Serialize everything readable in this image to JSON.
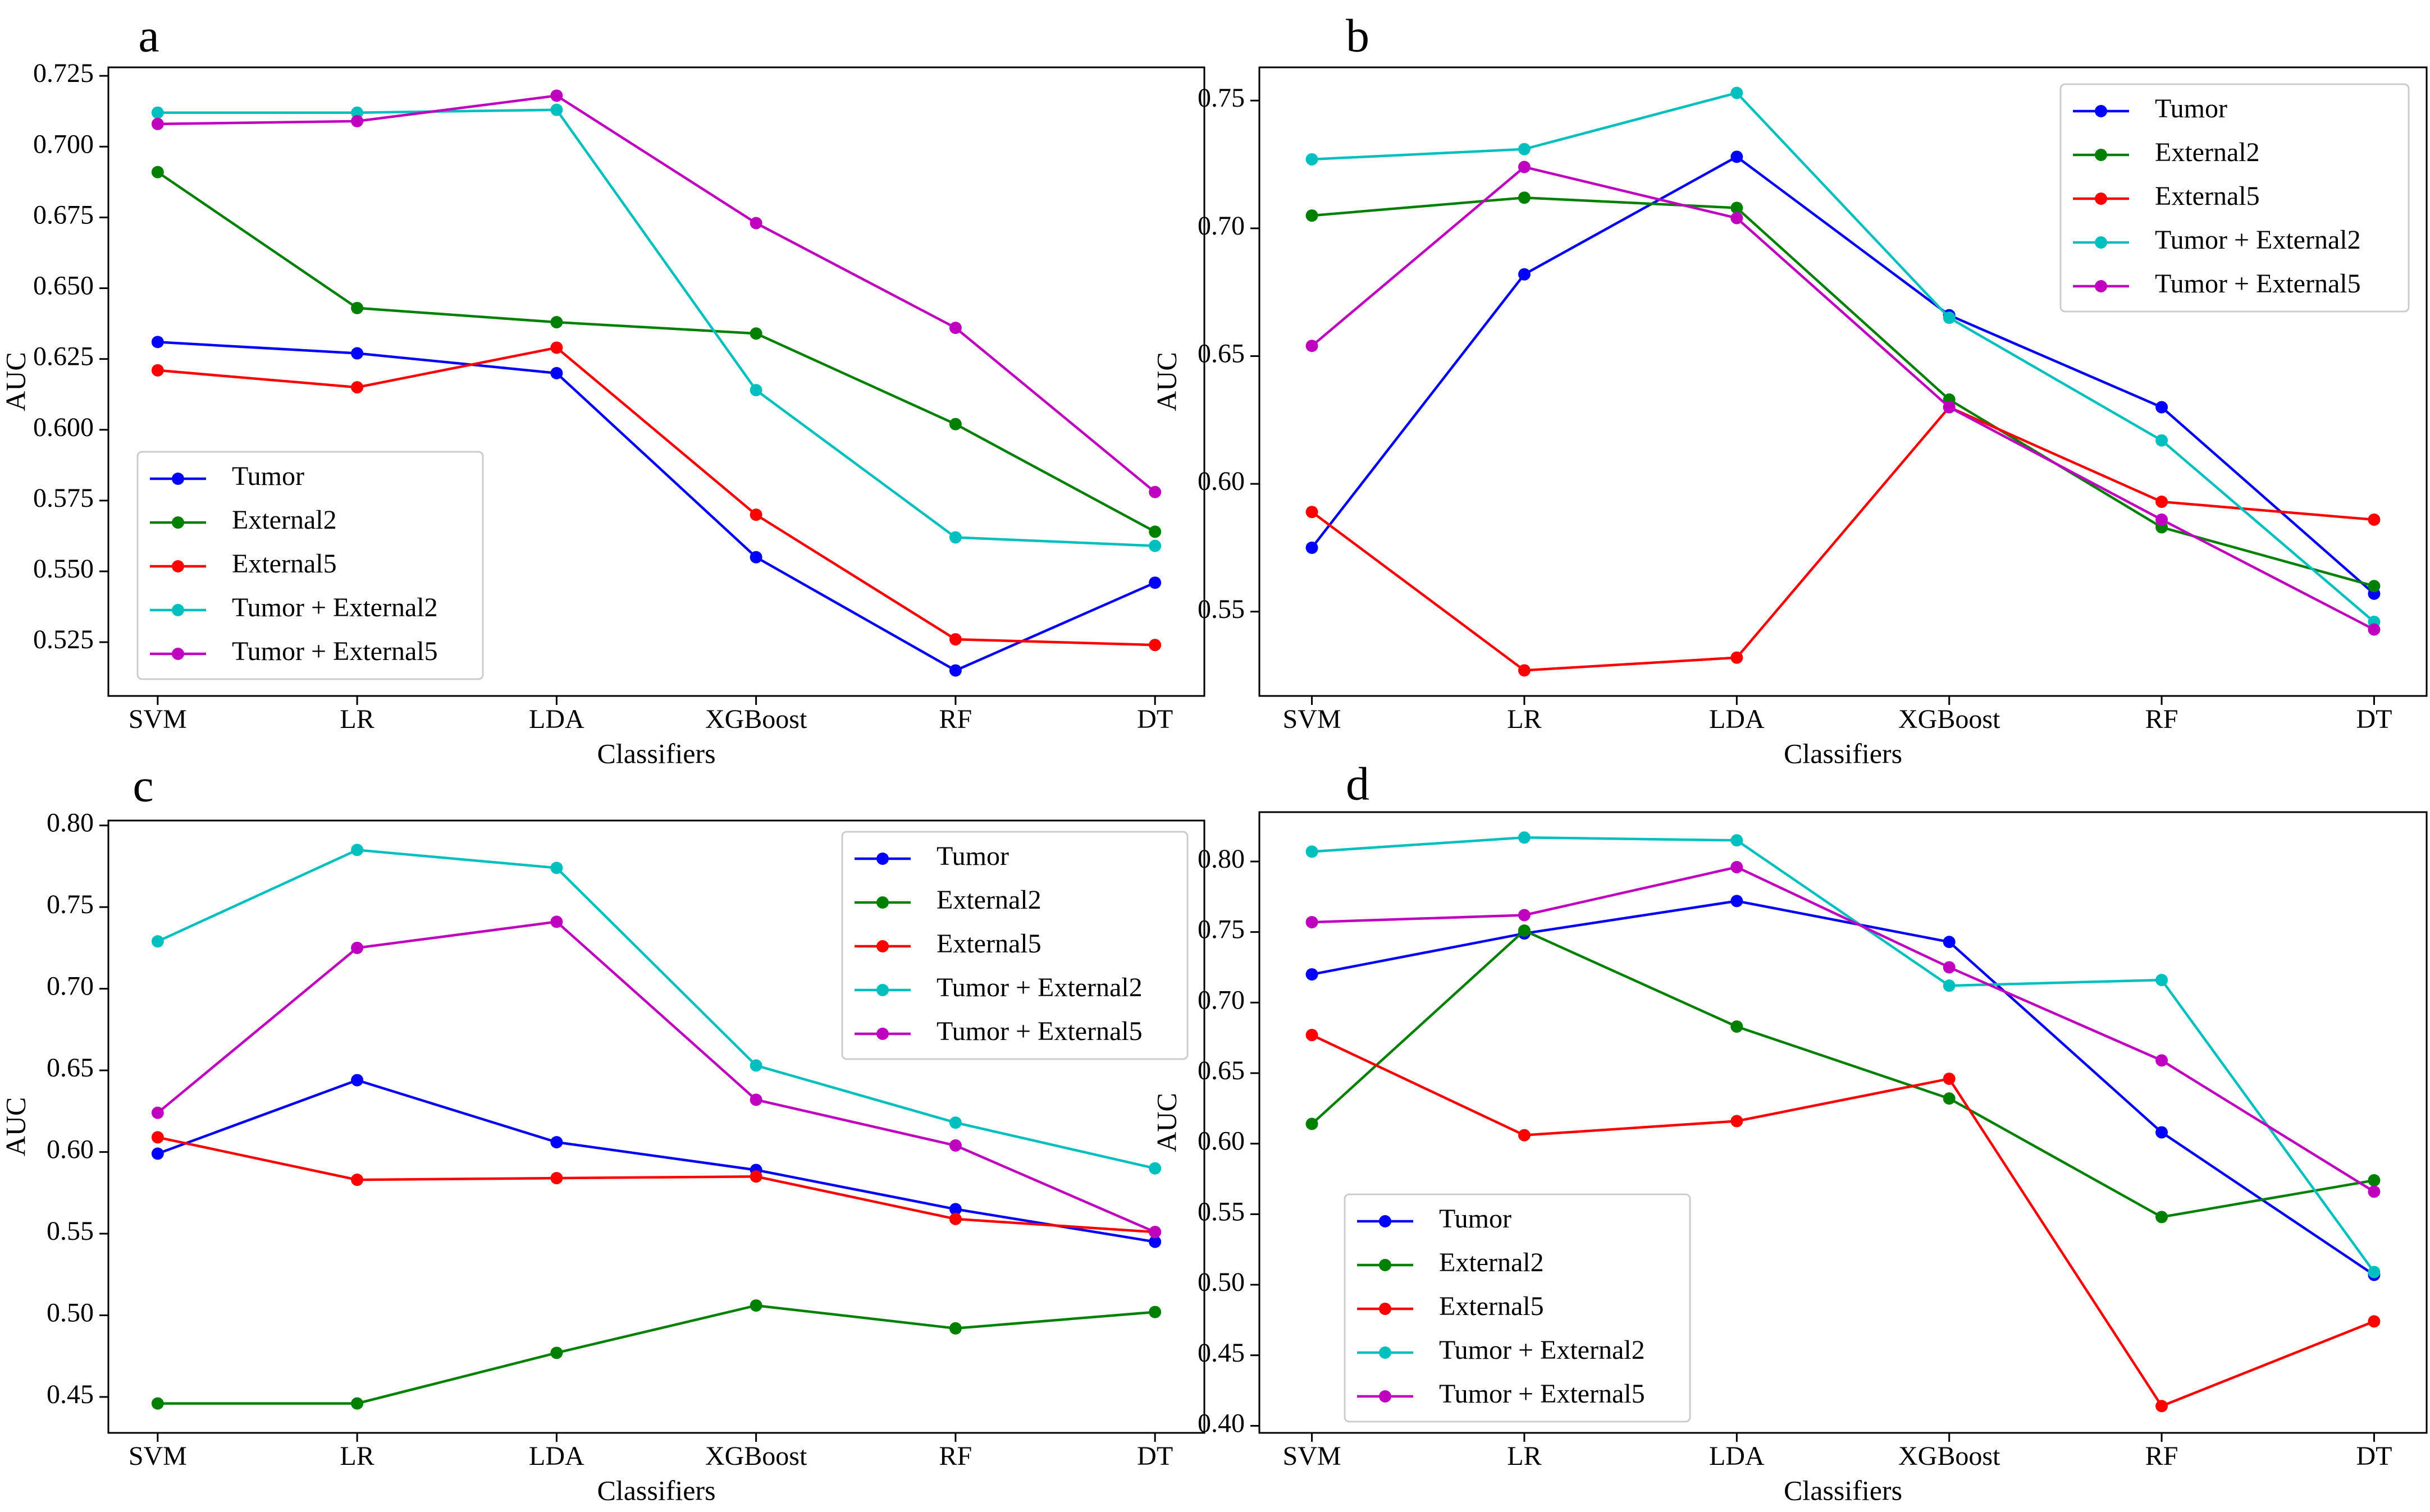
{
  "chart_data": [
    {
      "panel": "a",
      "type": "line",
      "xlabel": "Classifiers",
      "ylabel": "AUC",
      "categories": [
        "SVM",
        "LR",
        "LDA",
        "XGBoost",
        "RF",
        "DT"
      ],
      "ylim": [
        0.506,
        0.728
      ],
      "yticks": [
        "0.525",
        "0.550",
        "0.575",
        "0.600",
        "0.625",
        "0.650",
        "0.675",
        "0.700",
        "0.725"
      ],
      "legend_position": "lower-left",
      "series": [
        {
          "name": "Tumor",
          "color": "#0000ff",
          "values": [
            0.631,
            0.627,
            0.62,
            0.555,
            0.515,
            0.546
          ]
        },
        {
          "name": "External2",
          "color": "#008000",
          "values": [
            0.691,
            0.643,
            0.638,
            0.634,
            0.602,
            0.564
          ]
        },
        {
          "name": "External5",
          "color": "#ff0000",
          "values": [
            0.621,
            0.615,
            0.629,
            0.57,
            0.526,
            0.524
          ]
        },
        {
          "name": "Tumor + External2",
          "color": "#00bfbf",
          "values": [
            0.712,
            0.712,
            0.713,
            0.614,
            0.562,
            0.559
          ]
        },
        {
          "name": "Tumor + External5",
          "color": "#bf00bf",
          "values": [
            0.708,
            0.709,
            0.718,
            0.673,
            0.636,
            0.578
          ]
        }
      ]
    },
    {
      "panel": "b",
      "type": "line",
      "xlabel": "Classifiers",
      "ylabel": "AUC",
      "categories": [
        "SVM",
        "LR",
        "LDA",
        "XGBoost",
        "RF",
        "DT"
      ],
      "ylim": [
        0.517,
        0.763
      ],
      "yticks": [
        "0.55",
        "0.60",
        "0.65",
        "0.70",
        "0.75"
      ],
      "legend_position": "upper-right",
      "series": [
        {
          "name": "Tumor",
          "color": "#0000ff",
          "values": [
            0.575,
            0.682,
            0.728,
            0.666,
            0.63,
            0.557
          ]
        },
        {
          "name": "External2",
          "color": "#008000",
          "values": [
            0.705,
            0.712,
            0.708,
            0.633,
            0.583,
            0.56
          ]
        },
        {
          "name": "External5",
          "color": "#ff0000",
          "values": [
            0.589,
            0.527,
            0.532,
            0.63,
            0.593,
            0.586
          ]
        },
        {
          "name": "Tumor + External2",
          "color": "#00bfbf",
          "values": [
            0.727,
            0.731,
            0.753,
            0.665,
            0.617,
            0.546
          ]
        },
        {
          "name": "Tumor + External5",
          "color": "#bf00bf",
          "values": [
            0.654,
            0.724,
            0.704,
            0.63,
            0.586,
            0.543
          ]
        }
      ]
    },
    {
      "panel": "c",
      "type": "line",
      "xlabel": "Classifiers",
      "ylabel": "AUC",
      "categories": [
        "SVM",
        "LR",
        "LDA",
        "XGBoost",
        "RF",
        "DT"
      ],
      "ylim": [
        0.428,
        0.803
      ],
      "yticks": [
        "0.45",
        "0.50",
        "0.55",
        "0.60",
        "0.65",
        "0.70",
        "0.75",
        "0.80"
      ],
      "legend_position": "upper-right",
      "series": [
        {
          "name": "Tumor",
          "color": "#0000ff",
          "values": [
            0.599,
            0.644,
            0.606,
            0.589,
            0.565,
            0.545
          ]
        },
        {
          "name": "External2",
          "color": "#008000",
          "values": [
            0.446,
            0.446,
            0.477,
            0.506,
            0.492,
            0.502
          ]
        },
        {
          "name": "External5",
          "color": "#ff0000",
          "values": [
            0.609,
            0.583,
            0.584,
            0.585,
            0.559,
            0.551
          ]
        },
        {
          "name": "Tumor + External2",
          "color": "#00bfbf",
          "values": [
            0.729,
            0.785,
            0.774,
            0.653,
            0.618,
            0.59
          ]
        },
        {
          "name": "Tumor + External5",
          "color": "#bf00bf",
          "values": [
            0.624,
            0.725,
            0.741,
            0.632,
            0.604,
            0.551
          ]
        }
      ]
    },
    {
      "panel": "d",
      "type": "line",
      "xlabel": "Classifiers",
      "ylabel": "AUC",
      "categories": [
        "SVM",
        "LR",
        "LDA",
        "XGBoost",
        "RF",
        "DT"
      ],
      "ylim": [
        0.395,
        0.835
      ],
      "yticks": [
        "0.40",
        "0.45",
        "0.50",
        "0.55",
        "0.60",
        "0.65",
        "0.70",
        "0.75",
        "0.80"
      ],
      "legend_position": "lower-left",
      "series": [
        {
          "name": "Tumor",
          "color": "#0000ff",
          "values": [
            0.72,
            0.749,
            0.772,
            0.743,
            0.608,
            0.507
          ]
        },
        {
          "name": "External2",
          "color": "#008000",
          "values": [
            0.614,
            0.751,
            0.683,
            0.632,
            0.548,
            0.574
          ]
        },
        {
          "name": "External5",
          "color": "#ff0000",
          "values": [
            0.677,
            0.606,
            0.616,
            0.646,
            0.414,
            0.474
          ]
        },
        {
          "name": "Tumor + External2",
          "color": "#00bfbf",
          "values": [
            0.807,
            0.817,
            0.815,
            0.712,
            0.716,
            0.509
          ]
        },
        {
          "name": "Tumor + External5",
          "color": "#bf00bf",
          "values": [
            0.757,
            0.762,
            0.796,
            0.725,
            0.659,
            0.566
          ]
        }
      ]
    }
  ]
}
